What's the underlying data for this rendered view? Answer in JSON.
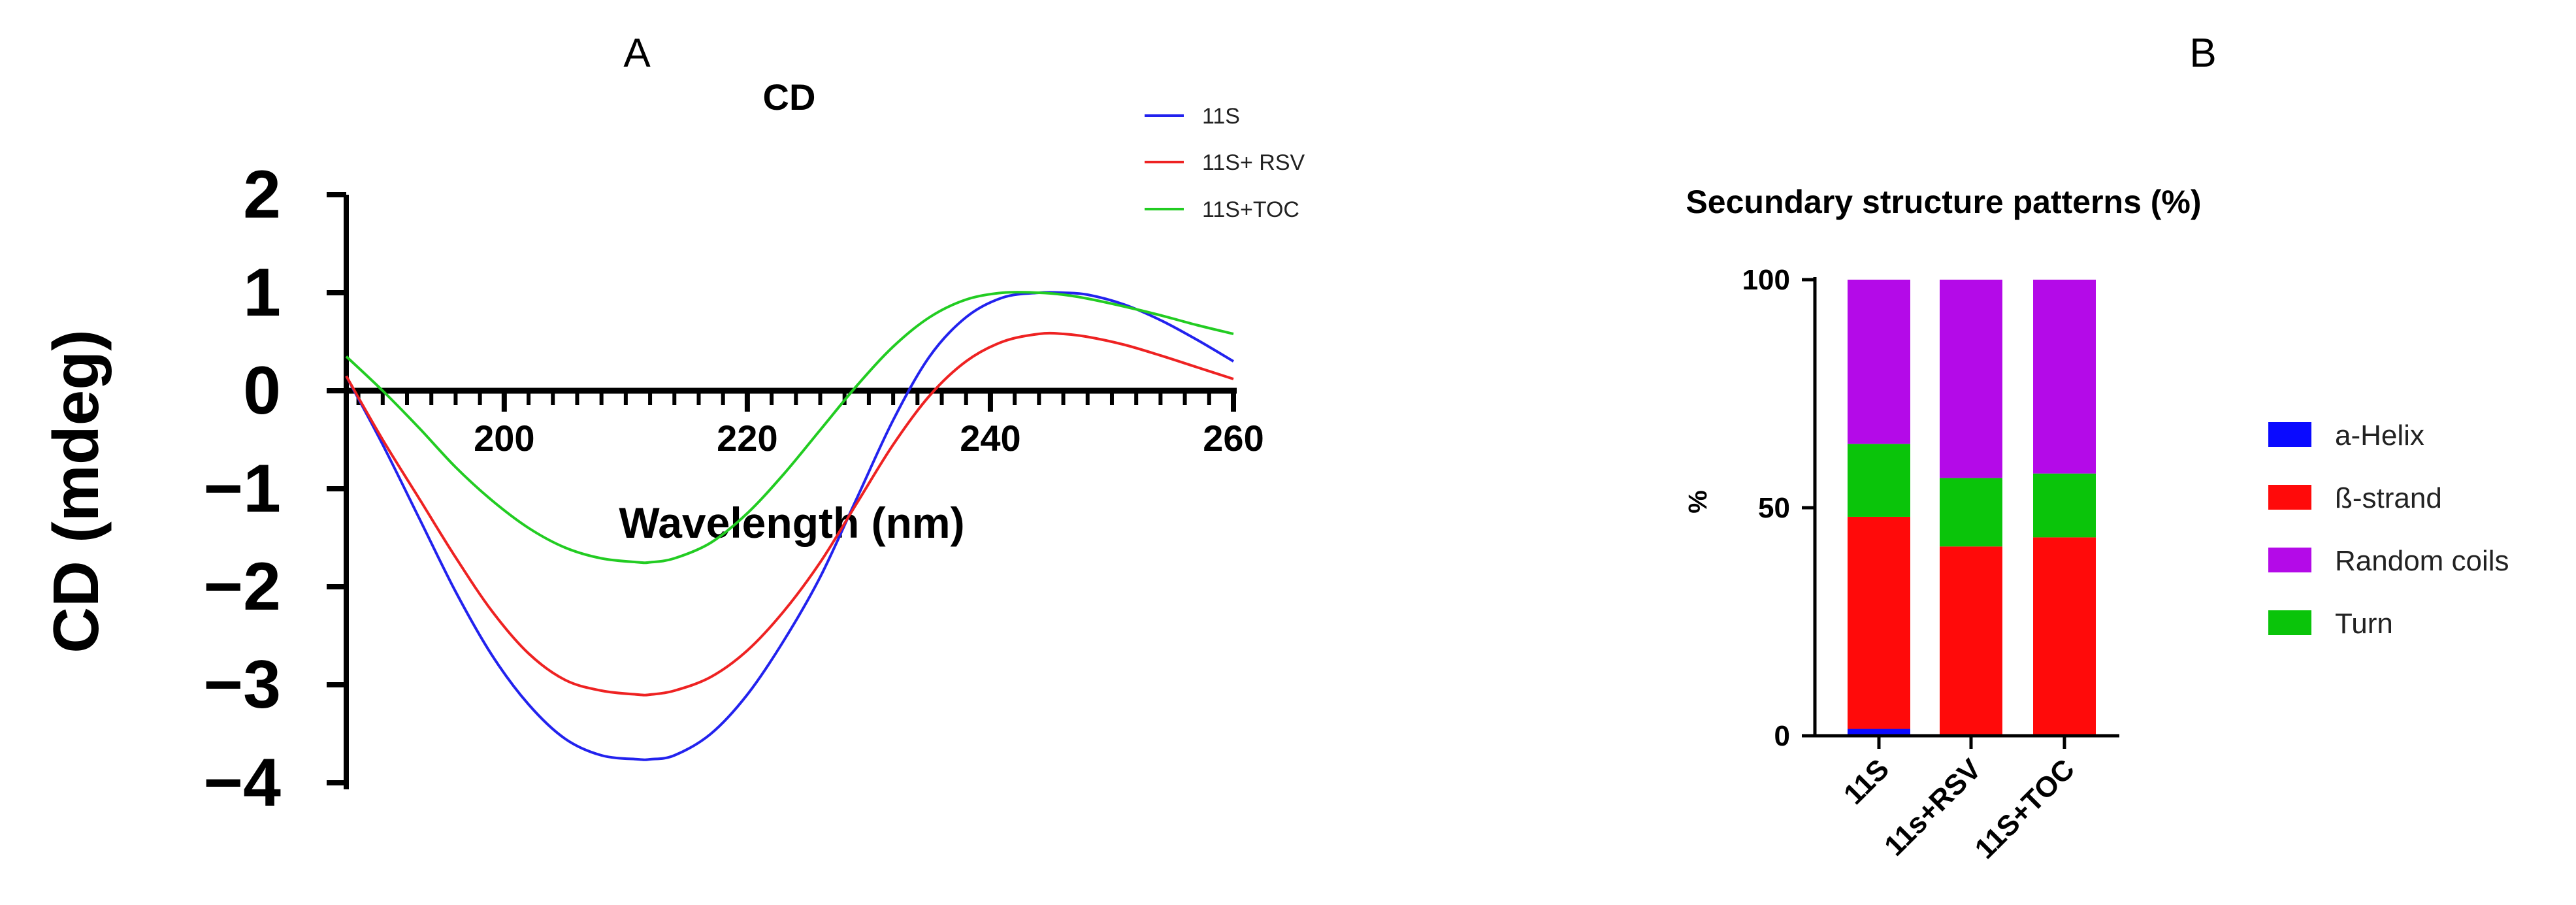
{
  "chart_data": [
    {
      "panel_label": "A",
      "type": "line",
      "title": "CD",
      "xlabel": "Wavelength (nm)",
      "ylabel": "CD (mdeg)",
      "xlim": [
        187,
        260
      ],
      "ylim": [
        -4,
        2
      ],
      "x_ticks": [
        200,
        220,
        240,
        260
      ],
      "x_tick_labels": [
        "200",
        "220",
        "240",
        "260"
      ],
      "y_ticks": [
        2,
        1,
        0,
        -1,
        -2,
        -3,
        -4
      ],
      "y_tick_labels": [
        "2",
        "1",
        "0",
        "−1",
        "−2",
        "−3",
        "−4"
      ],
      "x_axis_crosses_at_y": 0,
      "legend_position": "top-right",
      "grid": false,
      "series": [
        {
          "name": "11S",
          "color": "#2222ee",
          "x": [
            187,
            190,
            193,
            196,
            199,
            202,
            205,
            208,
            211,
            212,
            214,
            217,
            220,
            223,
            226,
            229,
            232,
            235,
            238,
            241,
            244,
            246,
            248,
            251,
            254,
            257,
            260
          ],
          "y": [
            0.15,
            -0.55,
            -1.3,
            -2.05,
            -2.7,
            -3.2,
            -3.55,
            -3.72,
            -3.76,
            -3.76,
            -3.72,
            -3.5,
            -3.1,
            -2.55,
            -1.9,
            -1.1,
            -0.3,
            0.35,
            0.75,
            0.95,
            1.0,
            1.0,
            0.98,
            0.88,
            0.72,
            0.52,
            0.3
          ]
        },
        {
          "name": "11S+ RSV",
          "color": "#ee2222",
          "x": [
            187,
            190,
            193,
            196,
            199,
            202,
            205,
            208,
            211,
            212,
            214,
            217,
            220,
            223,
            226,
            229,
            232,
            235,
            238,
            241,
            244,
            246,
            248,
            251,
            254,
            257,
            260
          ],
          "y": [
            0.15,
            -0.5,
            -1.1,
            -1.7,
            -2.25,
            -2.68,
            -2.95,
            -3.06,
            -3.1,
            -3.1,
            -3.06,
            -2.92,
            -2.65,
            -2.25,
            -1.75,
            -1.15,
            -0.55,
            -0.05,
            0.3,
            0.5,
            0.58,
            0.58,
            0.55,
            0.47,
            0.36,
            0.24,
            0.12
          ]
        },
        {
          "name": "11S+TOC",
          "color": "#22cc22",
          "x": [
            187,
            190,
            193,
            196,
            199,
            202,
            205,
            208,
            211,
            212,
            214,
            217,
            220,
            223,
            226,
            229,
            232,
            235,
            238,
            241,
            244,
            246,
            248,
            251,
            254,
            257,
            260
          ],
          "y": [
            0.35,
            0.0,
            -0.38,
            -0.78,
            -1.12,
            -1.4,
            -1.6,
            -1.71,
            -1.75,
            -1.75,
            -1.71,
            -1.55,
            -1.25,
            -0.85,
            -0.4,
            0.05,
            0.45,
            0.75,
            0.93,
            1.0,
            1.0,
            0.98,
            0.94,
            0.86,
            0.77,
            0.67,
            0.58
          ]
        }
      ]
    },
    {
      "panel_label": "B",
      "type": "bar",
      "stacked": true,
      "title": "Secundary structure patterns (%)",
      "xlabel": "",
      "ylabel": "%",
      "ylim": [
        0,
        100
      ],
      "y_ticks": [
        0,
        50,
        100
      ],
      "y_tick_labels": [
        "0",
        "50",
        "100"
      ],
      "categories": [
        "11S",
        "11s+RSV",
        "11S+TOC"
      ],
      "legend_position": "right",
      "grid": false,
      "series": [
        {
          "name": "a-Helix",
          "color": "#0a0aff",
          "values": [
            1.5,
            0,
            0
          ]
        },
        {
          "name": "ß-strand",
          "color": "#ff0a0a",
          "values": [
            46.5,
            41.5,
            43.5
          ]
        },
        {
          "name": "Turn",
          "color": "#0ac40a",
          "values": [
            16,
            15,
            14
          ]
        },
        {
          "name": "Random coils",
          "color": "#b40ae8",
          "values": [
            36,
            43.5,
            42.5
          ]
        }
      ],
      "legend_order": [
        "a-Helix",
        "ß-strand",
        "Random coils",
        "Turn"
      ]
    }
  ]
}
